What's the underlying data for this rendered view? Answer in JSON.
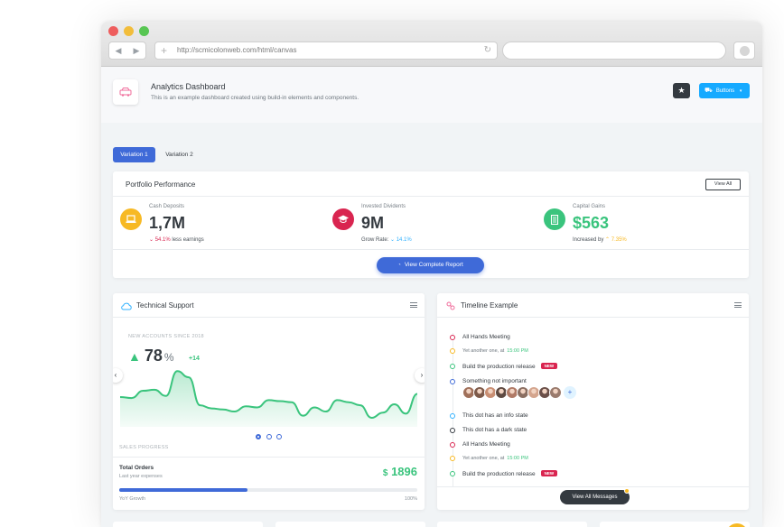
{
  "browser": {
    "url": "http://scmicolonweb.com/html/canvas",
    "nav_back": "◀",
    "nav_forward": "▶",
    "new_tab": "+",
    "reload": "↻"
  },
  "header": {
    "title": "Analytics Dashboard",
    "subtitle": "This is an example dashboard created using build-in elements and components.",
    "star_label": "★",
    "buttons_label": "Buttons",
    "caret": "▾"
  },
  "tabs": [
    {
      "label": "Variation 1",
      "active": true
    },
    {
      "label": "Variation 2",
      "active": false
    }
  ],
  "portfolio": {
    "title": "Portfolio Performance",
    "view_all_label": "View All",
    "metrics": [
      {
        "label": "Cash Deposits",
        "value": "1,7M",
        "trend_arrow": "⌄",
        "trend_value": "54.1%",
        "trend_text": "less earnings",
        "icon": "laptop-icon",
        "color": "#f7b924"
      },
      {
        "label": "Invested Dividents",
        "value": "9M",
        "trend_prefix": "Grow Rate:",
        "trend_arrow": "⌄",
        "trend_value": "14.1%",
        "icon": "graduation-cap-icon",
        "color": "#d92550"
      },
      {
        "label": "Capital Gains",
        "value": "$563",
        "trend_prefix": "Increased by",
        "trend_arrow": "⌃",
        "trend_value": "7.35%",
        "icon": "building-icon",
        "color": "#3ac47d"
      }
    ],
    "report_button_label": "View Complete Report"
  },
  "support": {
    "title": "Technical Support",
    "kicker": "NEW ACCOUNTS SINCE 2018",
    "value": "78",
    "unit": "%",
    "delta": "+14",
    "arrow_up": "▲",
    "sales_progress_label": "SALES PROGRESS",
    "total_orders_label": "Total Orders",
    "orders_sub": "Last year expenses",
    "orders_value": "1896",
    "currency": "$",
    "yoy_label": "YoY Growth",
    "yoy_pct": "100%",
    "progress_fraction": 0.43,
    "carousel_prev": "‹",
    "carousel_next": "›",
    "chart_data": {
      "type": "area",
      "values": [
        27,
        26,
        33,
        34,
        28,
        52,
        46,
        19,
        16,
        15,
        13,
        18,
        17,
        24,
        23,
        22,
        9,
        17,
        13,
        24,
        22,
        19,
        7,
        12,
        20,
        11,
        30
      ],
      "color": "#3ac47d"
    }
  },
  "timeline": {
    "title": "Timeline Example",
    "view_messages_label": "View All Messages",
    "add_label": "+",
    "items": [
      {
        "text": "All Hands Meeting",
        "color": "#d92550",
        "type": "title"
      },
      {
        "text": "Yet another one, at",
        "time": "15:00 PM",
        "color": "#f7b924",
        "type": "small"
      },
      {
        "text": "Build the production release",
        "badge": "NEW",
        "color": "#3ac47d",
        "type": "title"
      },
      {
        "text": "Something not important",
        "color": "#3f6ad8",
        "type": "title"
      },
      {
        "text": "This dot has an info state",
        "color": "#30b1ff",
        "type": "title"
      },
      {
        "text": "This dot has a dark state",
        "color": "#343a40",
        "type": "title"
      },
      {
        "text": "All Hands Meeting",
        "color": "#d92550",
        "type": "title"
      },
      {
        "text": "Yet another one, at",
        "time": "15:00 PM",
        "color": "#f7b924",
        "type": "small"
      },
      {
        "text": "Build the production release",
        "badge": "NEW",
        "color": "#3ac47d",
        "type": "title"
      }
    ],
    "avatar_colors": [
      "#a0705a",
      "#7d5a4a",
      "#c98f74",
      "#5e4a42",
      "#b07a66",
      "#8b6f62",
      "#d4a58e",
      "#6b5049",
      "#9a7b6d"
    ]
  },
  "colors": {
    "primary": "#3f6ad8",
    "success": "#3ac47d",
    "danger": "#d92550",
    "warning": "#f7b924",
    "info": "#30b1ff",
    "dark": "#343a40"
  }
}
